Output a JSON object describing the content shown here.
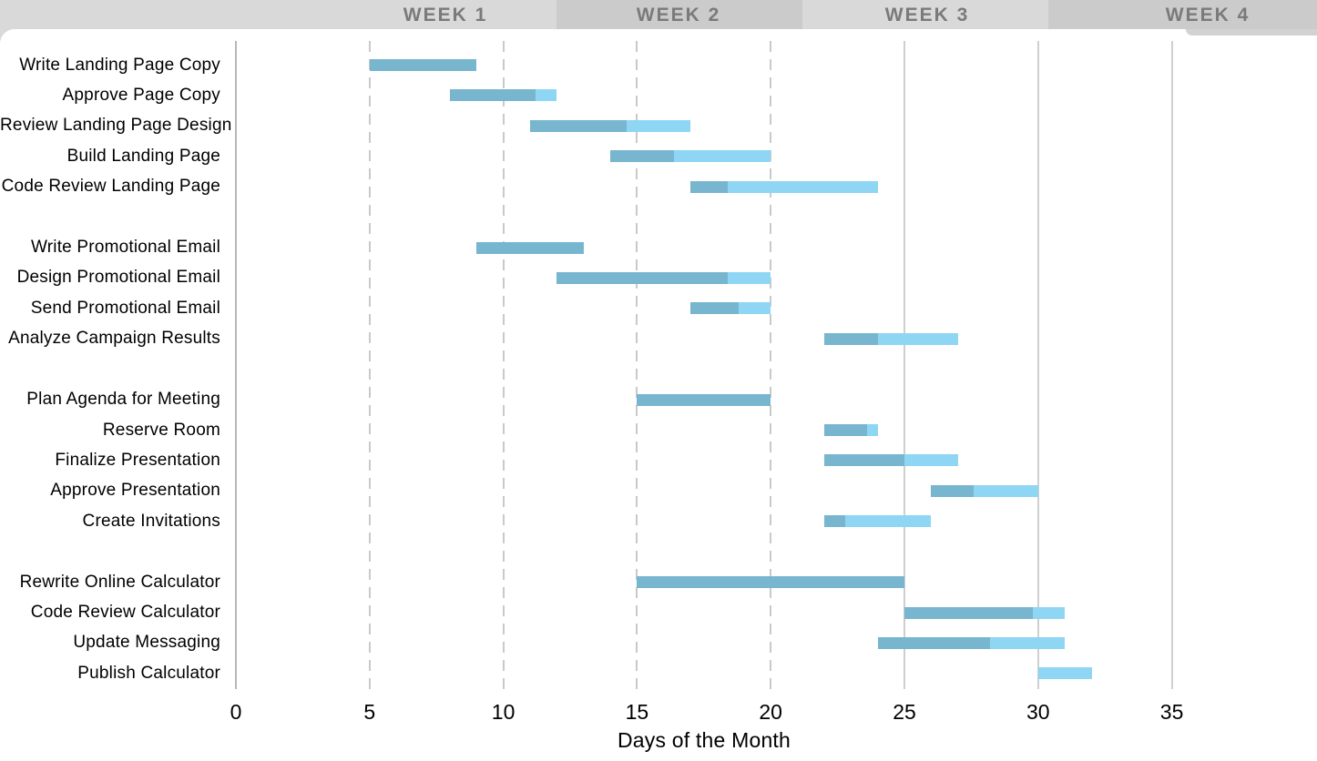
{
  "chart_data": {
    "type": "gantt",
    "xlabel": "Days of the Month",
    "x_ticks": [
      0,
      5,
      10,
      15,
      20,
      25,
      30,
      35
    ],
    "x_range": [
      0,
      40
    ],
    "dashed_gridline_days": [
      5,
      10,
      15,
      20
    ],
    "solid_gridline_days": [
      0,
      25,
      30,
      35
    ],
    "week_headers": [
      {
        "label": "WEEK 1"
      },
      {
        "label": "WEEK 2"
      },
      {
        "label": "WEEK 3"
      },
      {
        "label": "WEEK 4"
      }
    ],
    "bar_meaning": {
      "dark": "portion complete",
      "light": "portion remaining"
    },
    "groups": [
      {
        "tasks": [
          {
            "name": "Write Landing Page Copy",
            "start": 5,
            "end": 9,
            "percent_complete": 100
          },
          {
            "name": "Approve Page Copy",
            "start": 8,
            "end": 12,
            "percent_complete": 80
          },
          {
            "name": "Review Landing Page Design",
            "start": 11,
            "end": 17,
            "percent_complete": 60
          },
          {
            "name": "Build Landing Page",
            "start": 14,
            "end": 20,
            "percent_complete": 40
          },
          {
            "name": "Code Review Landing Page",
            "start": 17,
            "end": 24,
            "percent_complete": 20
          }
        ]
      },
      {
        "tasks": [
          {
            "name": "Write Promotional Email",
            "start": 9,
            "end": 13,
            "percent_complete": 100
          },
          {
            "name": "Design Promotional Email",
            "start": 12,
            "end": 20,
            "percent_complete": 80
          },
          {
            "name": "Send Promotional Email",
            "start": 17,
            "end": 20,
            "percent_complete": 60
          },
          {
            "name": "Analyze Campaign Results",
            "start": 22,
            "end": 27,
            "percent_complete": 40
          }
        ]
      },
      {
        "tasks": [
          {
            "name": "Plan Agenda for Meeting",
            "start": 15,
            "end": 20,
            "percent_complete": 100
          },
          {
            "name": "Reserve Room",
            "start": 22,
            "end": 24,
            "percent_complete": 80
          },
          {
            "name": "Finalize Presentation",
            "start": 22,
            "end": 27,
            "percent_complete": 60
          },
          {
            "name": "Approve Presentation",
            "start": 26,
            "end": 30,
            "percent_complete": 40
          },
          {
            "name": "Create Invitations",
            "start": 22,
            "end": 26,
            "percent_complete": 20
          }
        ]
      },
      {
        "tasks": [
          {
            "name": "Rewrite Online Calculator",
            "start": 15,
            "end": 25,
            "percent_complete": 100
          },
          {
            "name": "Code Review Calculator",
            "start": 25,
            "end": 31,
            "percent_complete": 80
          },
          {
            "name": "Update Messaging",
            "start": 24,
            "end": 31,
            "percent_complete": 60
          },
          {
            "name": "Publish Calculator",
            "start": 30,
            "end": 32,
            "percent_complete": 0
          }
        ]
      }
    ]
  },
  "colors": {
    "bar_complete": "#77b6ce",
    "bar_remaining": "#8ed6f3",
    "header_light": "#d9d9d9",
    "header_dark": "#cbcbcb",
    "header_text": "#7a7a7a",
    "gridline_dashed": "#c9c9c9",
    "gridline_solid": "#cfcfcf",
    "axis_line": "#b7b7b7",
    "text": "#000000"
  }
}
